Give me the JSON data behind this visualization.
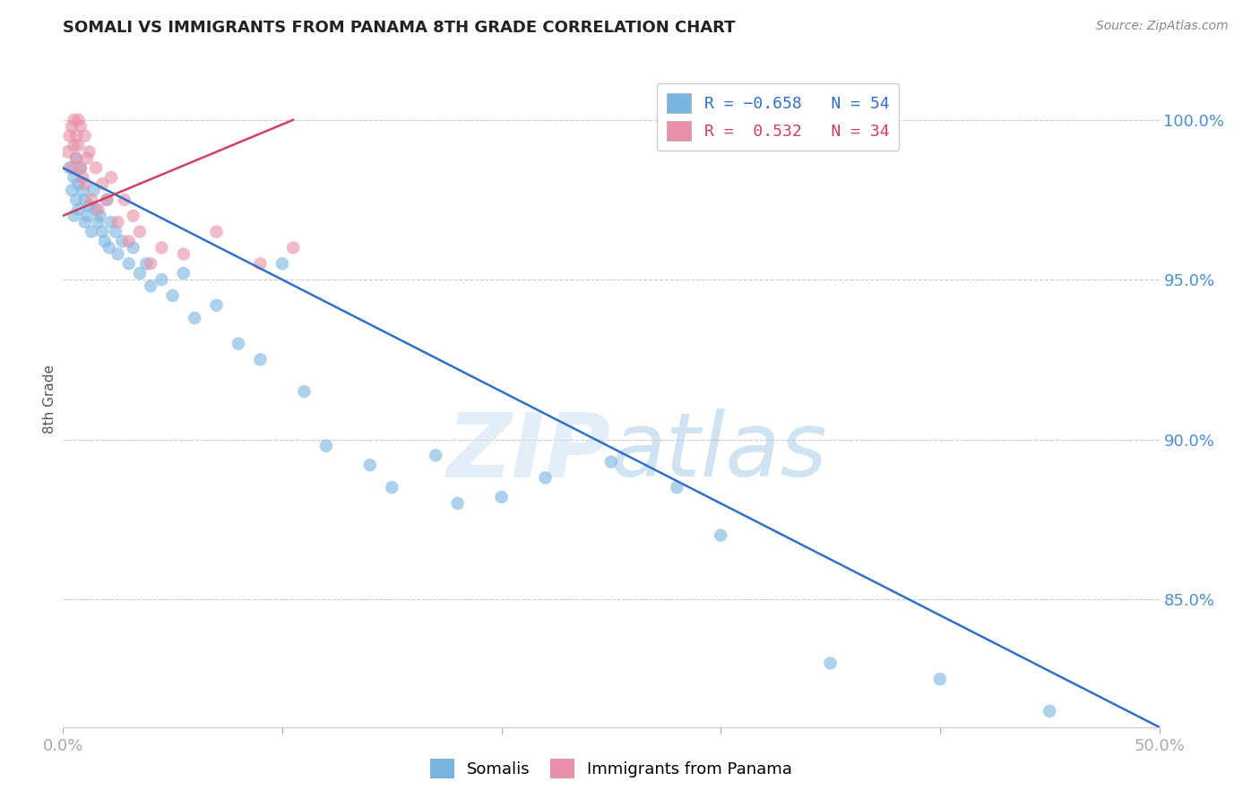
{
  "title": "SOMALI VS IMMIGRANTS FROM PANAMA 8TH GRADE CORRELATION CHART",
  "source": "Source: ZipAtlas.com",
  "ylabel": "8th Grade",
  "xmin": 0.0,
  "xmax": 50.0,
  "ymin": 81.0,
  "ymax": 101.5,
  "blue_color": "#7ab4e0",
  "pink_color": "#e890a8",
  "blue_line_color": "#3070c8",
  "pink_line_color": "#d04060",
  "blue_scatter_x": [
    0.3,
    0.4,
    0.5,
    0.5,
    0.6,
    0.6,
    0.7,
    0.7,
    0.8,
    0.9,
    1.0,
    1.0,
    1.1,
    1.2,
    1.3,
    1.4,
    1.5,
    1.6,
    1.7,
    1.8,
    1.9,
    2.0,
    2.1,
    2.2,
    2.4,
    2.5,
    2.7,
    3.0,
    3.2,
    3.5,
    3.8,
    4.0,
    4.5,
    5.0,
    5.5,
    6.0,
    7.0,
    8.0,
    9.0,
    10.0,
    11.0,
    12.0,
    14.0,
    15.0,
    17.0,
    18.0,
    20.0,
    22.0,
    25.0,
    28.0,
    30.0,
    35.0,
    40.0,
    45.0
  ],
  "blue_scatter_y": [
    98.5,
    97.8,
    98.2,
    97.0,
    98.8,
    97.5,
    97.2,
    98.0,
    98.5,
    97.8,
    97.5,
    96.8,
    97.0,
    97.3,
    96.5,
    97.8,
    97.2,
    96.8,
    97.0,
    96.5,
    96.2,
    97.5,
    96.0,
    96.8,
    96.5,
    95.8,
    96.2,
    95.5,
    96.0,
    95.2,
    95.5,
    94.8,
    95.0,
    94.5,
    95.2,
    93.8,
    94.2,
    93.0,
    92.5,
    95.5,
    91.5,
    89.8,
    89.2,
    88.5,
    89.5,
    88.0,
    88.2,
    88.8,
    89.3,
    88.5,
    87.0,
    83.0,
    82.5,
    81.5
  ],
  "pink_scatter_x": [
    0.2,
    0.3,
    0.4,
    0.4,
    0.5,
    0.5,
    0.6,
    0.6,
    0.7,
    0.7,
    0.8,
    0.8,
    0.9,
    1.0,
    1.0,
    1.1,
    1.2,
    1.3,
    1.5,
    1.6,
    1.8,
    2.0,
    2.2,
    2.5,
    2.8,
    3.0,
    3.2,
    3.5,
    4.0,
    4.5,
    5.5,
    7.0,
    9.0,
    10.5
  ],
  "pink_scatter_y": [
    99.0,
    99.5,
    99.8,
    98.5,
    99.2,
    100.0,
    99.5,
    98.8,
    99.2,
    100.0,
    98.5,
    99.8,
    98.2,
    99.5,
    98.0,
    98.8,
    99.0,
    97.5,
    98.5,
    97.2,
    98.0,
    97.5,
    98.2,
    96.8,
    97.5,
    96.2,
    97.0,
    96.5,
    95.5,
    96.0,
    95.8,
    96.5,
    95.5,
    96.0
  ],
  "blue_line_x": [
    0.0,
    50.0
  ],
  "blue_line_y": [
    98.5,
    81.0
  ],
  "pink_line_x": [
    0.0,
    10.5
  ],
  "pink_line_y": [
    97.0,
    100.0
  ],
  "watermark_zip": "ZIP",
  "watermark_atlas": "atlas",
  "background_color": "#ffffff",
  "grid_color": "#cccccc",
  "right_tick_color": "#4a90d9",
  "bottom_legend_labels": [
    "Somalis",
    "Immigrants from Panama"
  ]
}
